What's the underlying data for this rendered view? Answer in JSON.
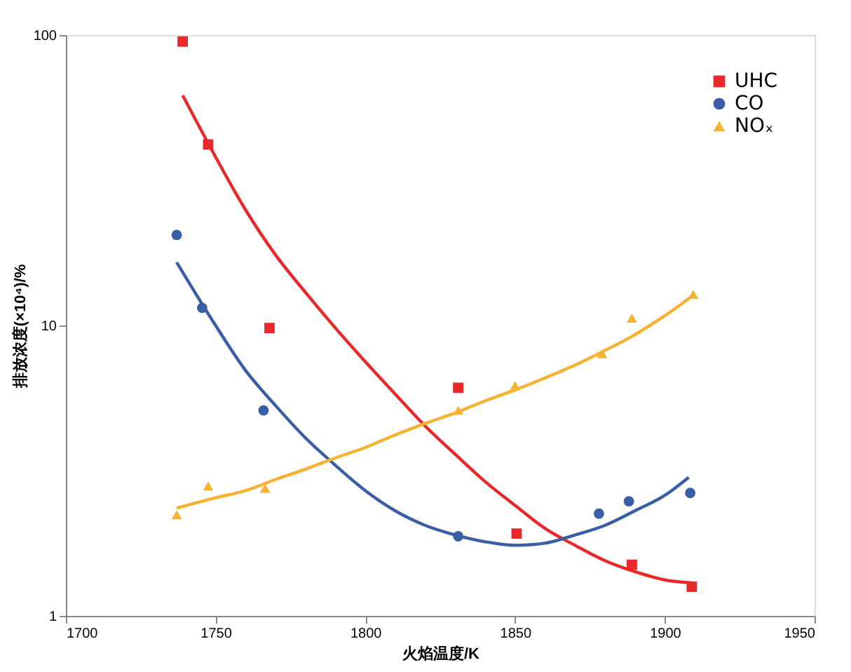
{
  "chart_data": {
    "type": "scatter",
    "xlabel": "火焰温度/K",
    "ylabel": "排放浓度(×10⁴)/%",
    "log": "y",
    "xlim": [
      1700,
      1950
    ],
    "xticks": [
      1700,
      1750,
      1800,
      1850,
      1900,
      1950
    ],
    "ylim": [
      1,
      100
    ],
    "yticks": [
      1,
      10,
      100
    ],
    "grid": false,
    "legend": "top right",
    "series": [
      {
        "name": "UHC",
        "marker": "square",
        "color": "#e8282a",
        "x": [
          1739,
          1747.5,
          1768,
          1831,
          1850.5,
          1889,
          1909
        ],
        "values": [
          95,
          42,
          9.8,
          6.1,
          1.92,
          1.5,
          1.26
        ]
      },
      {
        "name": "CO",
        "marker": "circle",
        "color": "#3a5ea6",
        "x": [
          1737,
          1745.5,
          1766,
          1831,
          1878,
          1888,
          1908.5
        ],
        "values": [
          20.5,
          11.5,
          5.1,
          1.88,
          2.25,
          2.48,
          2.65
        ]
      },
      {
        "name": "NOₓ",
        "marker": "triangle",
        "color": "#f5b331",
        "x": [
          1737,
          1747.5,
          1766.5,
          1831,
          1850,
          1879,
          1889,
          1909.5
        ],
        "values": [
          2.23,
          2.8,
          2.75,
          5.1,
          6.2,
          8,
          10.6,
          12.8
        ]
      },
      {
        "type": "line",
        "color": "#e8282a",
        "x": [
          1739,
          1750,
          1760,
          1770,
          1780,
          1790,
          1800,
          1810,
          1820,
          1830,
          1840,
          1850,
          1860,
          1870,
          1880,
          1890,
          1900,
          1909
        ],
        "values": [
          62,
          38,
          25,
          17.5,
          13,
          9.8,
          7.5,
          5.8,
          4.5,
          3.6,
          2.9,
          2.4,
          2.0,
          1.75,
          1.55,
          1.42,
          1.33,
          1.3
        ]
      },
      {
        "type": "line",
        "color": "#3a5ea6",
        "x": [
          1737,
          1750,
          1760,
          1770,
          1780,
          1790,
          1800,
          1810,
          1820,
          1830,
          1840,
          1850,
          1860,
          1870,
          1880,
          1890,
          1900,
          1908
        ],
        "values": [
          16.5,
          10,
          7,
          5.3,
          4.1,
          3.3,
          2.7,
          2.3,
          2.05,
          1.9,
          1.8,
          1.75,
          1.78,
          1.9,
          2.05,
          2.3,
          2.6,
          3.0
        ]
      },
      {
        "type": "line",
        "color": "#f5b331",
        "x": [
          1737,
          1750,
          1760,
          1770,
          1780,
          1790,
          1800,
          1810,
          1820,
          1830,
          1840,
          1850,
          1860,
          1870,
          1880,
          1890,
          1900,
          1909
        ],
        "values": [
          2.35,
          2.55,
          2.7,
          2.95,
          3.2,
          3.5,
          3.8,
          4.2,
          4.6,
          5.0,
          5.5,
          6.0,
          6.6,
          7.3,
          8.2,
          9.3,
          10.8,
          12.6
        ]
      }
    ]
  }
}
